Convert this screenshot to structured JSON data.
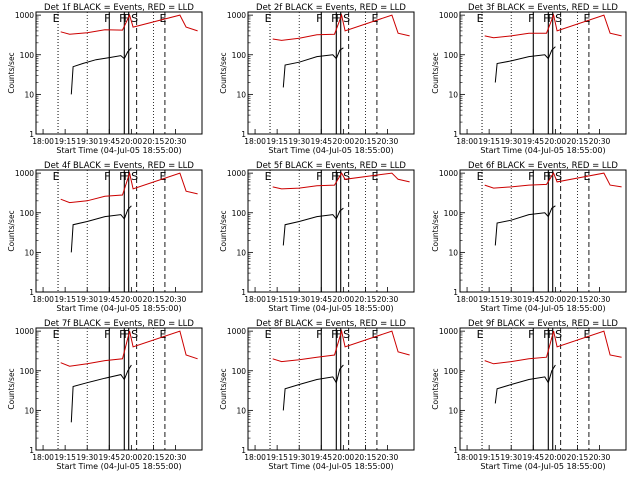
{
  "figure": {
    "xlabel": "Start Time (04-Jul-05 18:55:00)",
    "ylabel": "Counts/sec",
    "x_tick_labels": [
      "18:00",
      "19:15",
      "19:30",
      "19:45",
      "20:00",
      "20:15",
      "20:30"
    ],
    "y_tick_labels": [
      "1",
      "10",
      "100",
      "1000"
    ]
  },
  "chart_data": [
    {
      "type": "line",
      "title": "Det 1f BLACK = Events, RED = LLD",
      "xlabel": "Start Time (04-Jul-05 18:55:00)",
      "ylabel": "Counts/sec",
      "yscale": "log",
      "ylim": [
        1,
        1200
      ],
      "series": [
        {
          "name": "Events",
          "color": "#000000",
          "points": [
            [
              19.12,
              10
            ],
            [
              19.14,
              50
            ],
            [
              19.25,
              60
            ],
            [
              19.4,
              75
            ],
            [
              19.55,
              85
            ],
            [
              19.68,
              95
            ],
            [
              19.72,
              80
            ],
            [
              19.76,
              120
            ],
            [
              19.8,
              150
            ]
          ]
        },
        {
          "name": "LLD",
          "color": "#cc0000",
          "points": [
            [
              19.0,
              380
            ],
            [
              19.1,
              330
            ],
            [
              19.3,
              360
            ],
            [
              19.5,
              430
            ],
            [
              19.7,
              420
            ],
            [
              19.78,
              1000
            ],
            [
              19.82,
              500
            ],
            [
              20.35,
              1000
            ],
            [
              20.42,
              500
            ],
            [
              20.55,
              400
            ]
          ]
        }
      ],
      "markers": [
        {
          "label": "E",
          "x": 18.97
        },
        {
          "label": "F",
          "x": 19.55
        },
        {
          "label": "F",
          "x": 19.72
        },
        {
          "label": "F",
          "x": 19.77
        },
        {
          "label": "S",
          "x": 19.86
        },
        {
          "label": "E",
          "x": 20.18
        }
      ]
    },
    {
      "type": "line",
      "title": "Det 2f BLACK = Events, RED = LLD",
      "xlabel": "Start Time (04-Jul-05 18:55:00)",
      "ylabel": "Counts/sec",
      "yscale": "log",
      "ylim": [
        1,
        1200
      ],
      "series": [
        {
          "name": "Events",
          "color": "#000000",
          "points": [
            [
              19.12,
              15
            ],
            [
              19.14,
              55
            ],
            [
              19.3,
              65
            ],
            [
              19.5,
              90
            ],
            [
              19.68,
              100
            ],
            [
              19.72,
              80
            ],
            [
              19.76,
              130
            ],
            [
              19.8,
              150
            ]
          ]
        },
        {
          "name": "LLD",
          "color": "#cc0000",
          "points": [
            [
              19.0,
              250
            ],
            [
              19.1,
              230
            ],
            [
              19.3,
              260
            ],
            [
              19.5,
              320
            ],
            [
              19.7,
              330
            ],
            [
              19.78,
              1000
            ],
            [
              19.82,
              400
            ],
            [
              20.35,
              1000
            ],
            [
              20.42,
              350
            ],
            [
              20.55,
              300
            ]
          ]
        }
      ],
      "markers": [
        {
          "label": "E",
          "x": 18.97
        },
        {
          "label": "F",
          "x": 19.55
        },
        {
          "label": "F",
          "x": 19.72
        },
        {
          "label": "F",
          "x": 19.77
        },
        {
          "label": "S",
          "x": 19.86
        },
        {
          "label": "E",
          "x": 20.18
        }
      ]
    },
    {
      "type": "line",
      "title": "Det 3f BLACK = Events, RED = LLD",
      "xlabel": "Start Time (04-Jul-05 18:55:00)",
      "ylabel": "Counts/sec",
      "yscale": "log",
      "ylim": [
        1,
        1200
      ],
      "series": [
        {
          "name": "Events",
          "color": "#000000",
          "points": [
            [
              19.12,
              20
            ],
            [
              19.14,
              60
            ],
            [
              19.3,
              70
            ],
            [
              19.5,
              90
            ],
            [
              19.68,
              100
            ],
            [
              19.72,
              80
            ],
            [
              19.76,
              130
            ],
            [
              19.8,
              160
            ]
          ]
        },
        {
          "name": "LLD",
          "color": "#cc0000",
          "points": [
            [
              19.0,
              300
            ],
            [
              19.1,
              270
            ],
            [
              19.3,
              300
            ],
            [
              19.5,
              350
            ],
            [
              19.7,
              350
            ],
            [
              19.78,
              1000
            ],
            [
              19.82,
              400
            ],
            [
              20.35,
              1000
            ],
            [
              20.42,
              350
            ],
            [
              20.55,
              300
            ]
          ]
        }
      ],
      "markers": [
        {
          "label": "E",
          "x": 18.97
        },
        {
          "label": "F",
          "x": 19.55
        },
        {
          "label": "F",
          "x": 19.72
        },
        {
          "label": "F",
          "x": 19.77
        },
        {
          "label": "S",
          "x": 19.86
        },
        {
          "label": "E",
          "x": 20.18
        }
      ]
    },
    {
      "type": "line",
      "title": "Det 4f BLACK = Events, RED = LLD",
      "xlabel": "Start Time (04-Jul-05 18:55:00)",
      "ylabel": "Counts/sec",
      "yscale": "log",
      "ylim": [
        1,
        1200
      ],
      "series": [
        {
          "name": "Events",
          "color": "#000000",
          "points": [
            [
              19.12,
              10
            ],
            [
              19.14,
              50
            ],
            [
              19.3,
              60
            ],
            [
              19.5,
              80
            ],
            [
              19.68,
              90
            ],
            [
              19.72,
              70
            ],
            [
              19.76,
              120
            ],
            [
              19.8,
              150
            ]
          ]
        },
        {
          "name": "LLD",
          "color": "#cc0000",
          "points": [
            [
              19.0,
              220
            ],
            [
              19.1,
              180
            ],
            [
              19.3,
              200
            ],
            [
              19.5,
              260
            ],
            [
              19.7,
              280
            ],
            [
              19.78,
              1000
            ],
            [
              19.82,
              400
            ],
            [
              20.35,
              1000
            ],
            [
              20.42,
              350
            ],
            [
              20.55,
              300
            ]
          ]
        }
      ],
      "markers": [
        {
          "label": "E",
          "x": 18.97
        },
        {
          "label": "F",
          "x": 19.55
        },
        {
          "label": "F",
          "x": 19.72
        },
        {
          "label": "F",
          "x": 19.77
        },
        {
          "label": "S",
          "x": 19.86
        },
        {
          "label": "E",
          "x": 20.18
        }
      ]
    },
    {
      "type": "line",
      "title": "Det 5f BLACK = Events, RED = LLD",
      "xlabel": "Start Time (04-Jul-05 18:55:00)",
      "ylabel": "Counts/sec",
      "yscale": "log",
      "ylim": [
        1,
        1200
      ],
      "series": [
        {
          "name": "Events",
          "color": "#000000",
          "points": [
            [
              19.12,
              15
            ],
            [
              19.14,
              50
            ],
            [
              19.3,
              60
            ],
            [
              19.5,
              80
            ],
            [
              19.68,
              90
            ],
            [
              19.72,
              70
            ],
            [
              19.76,
              110
            ],
            [
              19.8,
              130
            ]
          ]
        },
        {
          "name": "LLD",
          "color": "#cc0000",
          "points": [
            [
              19.0,
              450
            ],
            [
              19.1,
              400
            ],
            [
              19.3,
              420
            ],
            [
              19.5,
              480
            ],
            [
              19.7,
              500
            ],
            [
              19.78,
              1000
            ],
            [
              19.82,
              700
            ],
            [
              20.35,
              1000
            ],
            [
              20.42,
              700
            ],
            [
              20.55,
              600
            ]
          ]
        }
      ],
      "markers": [
        {
          "label": "E",
          "x": 18.97
        },
        {
          "label": "F",
          "x": 19.55
        },
        {
          "label": "F",
          "x": 19.72
        },
        {
          "label": "F",
          "x": 19.77
        },
        {
          "label": "S",
          "x": 19.86
        },
        {
          "label": "E",
          "x": 20.18
        }
      ]
    },
    {
      "type": "line",
      "title": "Det 6f BLACK = Events, RED = LLD",
      "xlabel": "Start Time (04-Jul-05 18:55:00)",
      "ylabel": "Counts/sec",
      "yscale": "log",
      "ylim": [
        1,
        1200
      ],
      "series": [
        {
          "name": "Events",
          "color": "#000000",
          "points": [
            [
              19.12,
              15
            ],
            [
              19.14,
              55
            ],
            [
              19.3,
              65
            ],
            [
              19.5,
              90
            ],
            [
              19.68,
              100
            ],
            [
              19.72,
              80
            ],
            [
              19.76,
              130
            ],
            [
              19.8,
              150
            ]
          ]
        },
        {
          "name": "LLD",
          "color": "#cc0000",
          "points": [
            [
              19.0,
              500
            ],
            [
              19.1,
              420
            ],
            [
              19.3,
              450
            ],
            [
              19.5,
              500
            ],
            [
              19.7,
              520
            ],
            [
              19.78,
              1000
            ],
            [
              19.82,
              600
            ],
            [
              20.35,
              1000
            ],
            [
              20.42,
              500
            ],
            [
              20.55,
              450
            ]
          ]
        }
      ],
      "markers": [
        {
          "label": "E",
          "x": 18.97
        },
        {
          "label": "F",
          "x": 19.55
        },
        {
          "label": "F",
          "x": 19.72
        },
        {
          "label": "F",
          "x": 19.77
        },
        {
          "label": "S",
          "x": 19.86
        },
        {
          "label": "E",
          "x": 20.18
        }
      ]
    },
    {
      "type": "line",
      "title": "Det 7f BLACK = Events, RED = LLD",
      "xlabel": "Start Time (04-Jul-05 18:55:00)",
      "ylabel": "Counts/sec",
      "yscale": "log",
      "ylim": [
        1,
        1200
      ],
      "series": [
        {
          "name": "Events",
          "color": "#000000",
          "points": [
            [
              19.12,
              5
            ],
            [
              19.14,
              40
            ],
            [
              19.3,
              50
            ],
            [
              19.5,
              65
            ],
            [
              19.68,
              80
            ],
            [
              19.72,
              60
            ],
            [
              19.76,
              100
            ],
            [
              19.8,
              140
            ]
          ]
        },
        {
          "name": "LLD",
          "color": "#cc0000",
          "points": [
            [
              19.0,
              160
            ],
            [
              19.1,
              130
            ],
            [
              19.3,
              150
            ],
            [
              19.5,
              180
            ],
            [
              19.7,
              200
            ],
            [
              19.78,
              1000
            ],
            [
              19.82,
              400
            ],
            [
              20.35,
              1000
            ],
            [
              20.42,
              250
            ],
            [
              20.55,
              200
            ]
          ]
        }
      ],
      "markers": [
        {
          "label": "E",
          "x": 18.97
        },
        {
          "label": "F",
          "x": 19.55
        },
        {
          "label": "F",
          "x": 19.72
        },
        {
          "label": "F",
          "x": 19.77
        },
        {
          "label": "S",
          "x": 19.86
        },
        {
          "label": "E",
          "x": 20.18
        }
      ]
    },
    {
      "type": "line",
      "title": "Det 8f BLACK = Events, RED = LLD",
      "xlabel": "Start Time (04-Jul-05 18:55:00)",
      "ylabel": "Counts/sec",
      "yscale": "log",
      "ylim": [
        1,
        1200
      ],
      "series": [
        {
          "name": "Events",
          "color": "#000000",
          "points": [
            [
              19.12,
              10
            ],
            [
              19.14,
              35
            ],
            [
              19.3,
              45
            ],
            [
              19.5,
              60
            ],
            [
              19.68,
              70
            ],
            [
              19.72,
              50
            ],
            [
              19.76,
              110
            ],
            [
              19.8,
              140
            ]
          ]
        },
        {
          "name": "LLD",
          "color": "#cc0000",
          "points": [
            [
              19.0,
              200
            ],
            [
              19.1,
              170
            ],
            [
              19.3,
              190
            ],
            [
              19.5,
              220
            ],
            [
              19.7,
              250
            ],
            [
              19.78,
              1000
            ],
            [
              19.82,
              400
            ],
            [
              20.35,
              1000
            ],
            [
              20.42,
              300
            ],
            [
              20.55,
              250
            ]
          ]
        }
      ],
      "markers": [
        {
          "label": "E",
          "x": 18.97
        },
        {
          "label": "F",
          "x": 19.55
        },
        {
          "label": "F",
          "x": 19.72
        },
        {
          "label": "F",
          "x": 19.77
        },
        {
          "label": "S",
          "x": 19.86
        },
        {
          "label": "E",
          "x": 20.18
        }
      ]
    },
    {
      "type": "line",
      "title": "Det 9f BLACK = Events, RED = LLD",
      "xlabel": "Start Time (04-Jul-05 18:55:00)",
      "ylabel": "Counts/sec",
      "yscale": "log",
      "ylim": [
        1,
        1200
      ],
      "series": [
        {
          "name": "Events",
          "color": "#000000",
          "points": [
            [
              19.12,
              15
            ],
            [
              19.14,
              35
            ],
            [
              19.3,
              45
            ],
            [
              19.5,
              60
            ],
            [
              19.68,
              70
            ],
            [
              19.72,
              50
            ],
            [
              19.76,
              100
            ],
            [
              19.8,
              140
            ]
          ]
        },
        {
          "name": "LLD",
          "color": "#cc0000",
          "points": [
            [
              19.0,
              180
            ],
            [
              19.1,
              150
            ],
            [
              19.3,
              170
            ],
            [
              19.5,
              200
            ],
            [
              19.7,
              220
            ],
            [
              19.78,
              1000
            ],
            [
              19.82,
              400
            ],
            [
              20.35,
              1000
            ],
            [
              20.42,
              250
            ],
            [
              20.55,
              220
            ]
          ]
        }
      ],
      "markers": [
        {
          "label": "E",
          "x": 18.97
        },
        {
          "label": "F",
          "x": 19.55
        },
        {
          "label": "F",
          "x": 19.72
        },
        {
          "label": "F",
          "x": 19.77
        },
        {
          "label": "S",
          "x": 19.86
        },
        {
          "label": "E",
          "x": 20.18
        }
      ]
    }
  ]
}
